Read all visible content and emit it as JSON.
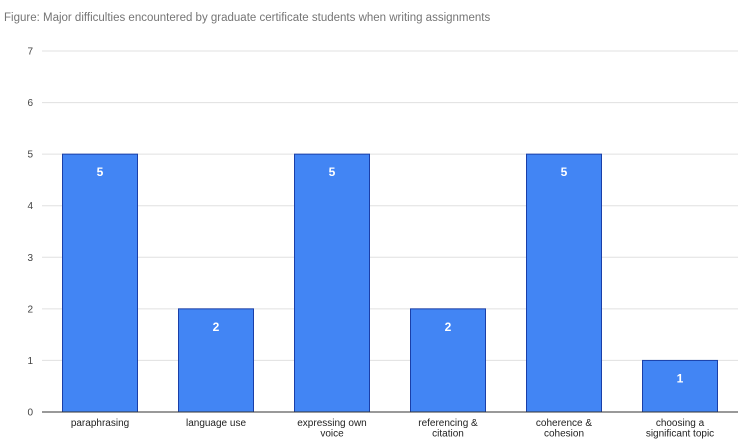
{
  "chart_data": {
    "type": "bar",
    "title": "Figure: Major difficulties encountered by graduate certificate students when writing assignments",
    "xlabel": "",
    "ylabel": "",
    "categories": [
      [
        "paraphrasing"
      ],
      [
        "language use"
      ],
      [
        "expressing own",
        "voice"
      ],
      [
        "referencing &",
        "citation"
      ],
      [
        "coherence &",
        "cohesion"
      ],
      [
        "choosing a",
        "significant topic"
      ]
    ],
    "values": [
      5,
      2,
      5,
      2,
      5,
      1
    ],
    "data_labels": [
      "5",
      "2",
      "5",
      "2",
      "5",
      "1"
    ],
    "ylim": [
      0,
      7
    ],
    "y_ticks": [
      0,
      1,
      2,
      3,
      4,
      5,
      6,
      7
    ],
    "grid": true,
    "legend": "none",
    "colors": {
      "bar_fill": "#4285f4",
      "bar_stroke": "#1a3fa8",
      "grid": "#e0e0e0",
      "axis": "#333333"
    }
  }
}
